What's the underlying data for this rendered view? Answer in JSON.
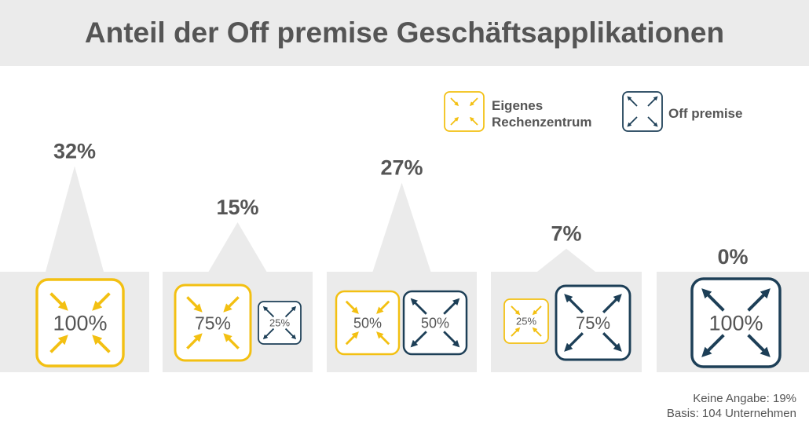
{
  "title": "Anteil der Off premise Geschäftsapplikationen",
  "colors": {
    "own": "#f3c012",
    "off": "#1d3f57",
    "panel": "#ebebeb",
    "text": "#555555"
  },
  "legend": [
    {
      "key": "own",
      "label_lines": [
        "Eigenes",
        "Rechenzentrum"
      ],
      "icon": "arrows-inward-icon"
    },
    {
      "key": "off",
      "label_lines": [
        "Off premise"
      ],
      "icon": "arrows-outward-icon"
    }
  ],
  "chart_data": {
    "type": "bar",
    "categories": [
      {
        "own_label": "100%",
        "off_label": null
      },
      {
        "own_label": "75%",
        "off_label": "25%"
      },
      {
        "own_label": "50%",
        "off_label": "50%"
      },
      {
        "own_label": "25%",
        "off_label": "75%"
      },
      {
        "own_label": null,
        "off_label": "100%"
      }
    ],
    "values": [
      32,
      15,
      27,
      7,
      0
    ],
    "value_labels": [
      "32%",
      "15%",
      "27%",
      "7%",
      "0%"
    ],
    "ylim": [
      0,
      35
    ]
  },
  "footnotes": {
    "no_answer": "Keine Angabe: 19%",
    "basis": "Basis: 104  Unternehmen"
  }
}
